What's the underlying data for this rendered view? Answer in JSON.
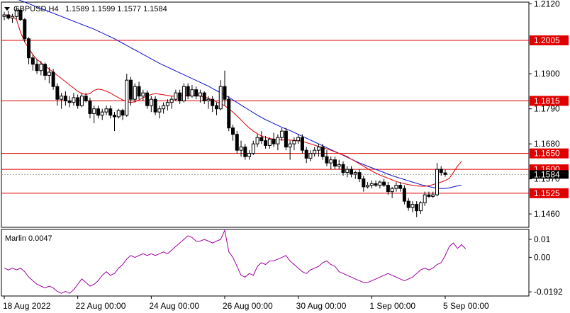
{
  "header": {
    "symbol": "GBPUSD,H4",
    "ohlc": "1.1589 1.1599 1.1577 1.1584"
  },
  "colors": {
    "candle_up": "#ffffff",
    "candle_down": "#000000",
    "ma_fast": "#e00000",
    "ma_slow": "#1010d0",
    "level_line": "#e00000",
    "level_label_bg": "#e00000",
    "level_label_text": "#ffffff",
    "oscillator": "#a000a0",
    "grid": "#c8c8c8"
  },
  "chart_data": [
    {
      "type": "candlestick",
      "title": "GBPUSD,H4",
      "y_ticks": [
        1.212,
        1.19,
        1.179,
        1.168,
        1.157,
        1.146
      ],
      "ylim": [
        1.1418,
        1.2125
      ],
      "x_ticks": [
        "18 Aug 2022",
        "22 Aug 00:00",
        "24 Aug 00:00",
        "26 Aug 00:00",
        "30 Aug 00:00",
        "1 Sep 00:00",
        "5 Sep 00:00"
      ],
      "x_tick_index": [
        0,
        18,
        36,
        54,
        72,
        90,
        108
      ],
      "current_price_label": "1.1584",
      "levels": [
        {
          "value": 1.2005,
          "label": "1.2005"
        },
        {
          "value": 1.1815,
          "label": "1.1815"
        },
        {
          "value": 1.165,
          "label": "1.1650"
        },
        {
          "value": 1.16,
          "label": "1.1600"
        },
        {
          "value": 1.1525,
          "label": "1.1525"
        }
      ],
      "candles": [
        [
          1.208,
          1.2095,
          1.2068,
          1.2085
        ],
        [
          1.2085,
          1.2098,
          1.207,
          1.2075
        ],
        [
          1.2075,
          1.2088,
          1.206,
          1.208
        ],
        [
          1.208,
          1.211,
          1.2072,
          1.21
        ],
        [
          1.21,
          1.2108,
          1.2065,
          1.207
        ],
        [
          1.207,
          1.2075,
          1.2,
          1.201
        ],
        [
          1.201,
          1.2015,
          1.193,
          1.195
        ],
        [
          1.195,
          1.196,
          1.191,
          1.193
        ],
        [
          1.193,
          1.1945,
          1.19,
          1.191
        ],
        [
          1.191,
          1.194,
          1.1895,
          1.193
        ],
        [
          1.193,
          1.1935,
          1.188,
          1.1895
        ],
        [
          1.1895,
          1.192,
          1.187,
          1.1905
        ],
        [
          1.1905,
          1.1915,
          1.185,
          1.186
        ],
        [
          1.186,
          1.187,
          1.18,
          1.182
        ],
        [
          1.182,
          1.184,
          1.179,
          1.183
        ],
        [
          1.183,
          1.1845,
          1.18,
          1.1815
        ],
        [
          1.1815,
          1.183,
          1.1795,
          1.181
        ],
        [
          1.181,
          1.184,
          1.18,
          1.1825
        ],
        [
          1.1825,
          1.1835,
          1.179,
          1.18
        ],
        [
          1.18,
          1.184,
          1.1795,
          1.183
        ],
        [
          1.183,
          1.184,
          1.181,
          1.1815
        ],
        [
          1.1815,
          1.1825,
          1.176,
          1.1775
        ],
        [
          1.1775,
          1.18,
          1.1745,
          1.179
        ],
        [
          1.179,
          1.18,
          1.176,
          1.177
        ],
        [
          1.177,
          1.179,
          1.1755,
          1.178
        ],
        [
          1.178,
          1.18,
          1.177,
          1.179
        ],
        [
          1.179,
          1.18,
          1.176,
          1.177
        ],
        [
          1.177,
          1.178,
          1.172,
          1.1765
        ],
        [
          1.1765,
          1.179,
          1.176,
          1.1785
        ],
        [
          1.1785,
          1.179,
          1.1755,
          1.177
        ],
        [
          1.177,
          1.19,
          1.1765,
          1.188
        ],
        [
          1.188,
          1.189,
          1.18,
          1.182
        ],
        [
          1.182,
          1.187,
          1.181,
          1.186
        ],
        [
          1.186,
          1.1875,
          1.182,
          1.183
        ],
        [
          1.183,
          1.185,
          1.1815,
          1.184
        ],
        [
          1.184,
          1.1848,
          1.179,
          1.18
        ],
        [
          1.18,
          1.183,
          1.178,
          1.182
        ],
        [
          1.182,
          1.183,
          1.177,
          1.178
        ],
        [
          1.178,
          1.18,
          1.176,
          1.179
        ],
        [
          1.179,
          1.181,
          1.1775,
          1.18
        ],
        [
          1.18,
          1.182,
          1.1785,
          1.181
        ],
        [
          1.181,
          1.183,
          1.179,
          1.182
        ],
        [
          1.182,
          1.185,
          1.1815,
          1.184
        ],
        [
          1.184,
          1.185,
          1.1805,
          1.1815
        ],
        [
          1.1815,
          1.187,
          1.181,
          1.186
        ],
        [
          1.186,
          1.187,
          1.182,
          1.183
        ],
        [
          1.183,
          1.1865,
          1.1825,
          1.185
        ],
        [
          1.185,
          1.186,
          1.182,
          1.183
        ],
        [
          1.183,
          1.185,
          1.181,
          1.184
        ],
        [
          1.184,
          1.1845,
          1.1805,
          1.1815
        ],
        [
          1.1815,
          1.183,
          1.179,
          1.182
        ],
        [
          1.182,
          1.183,
          1.178,
          1.18
        ],
        [
          1.18,
          1.181,
          1.177,
          1.179
        ],
        [
          1.179,
          1.188,
          1.1785,
          1.186
        ],
        [
          1.186,
          1.191,
          1.18,
          1.182
        ],
        [
          1.182,
          1.183,
          1.172,
          1.173
        ],
        [
          1.173,
          1.174,
          1.169,
          1.171
        ],
        [
          1.171,
          1.172,
          1.165,
          1.166
        ],
        [
          1.166,
          1.169,
          1.164,
          1.167
        ],
        [
          1.167,
          1.168,
          1.163,
          1.164
        ],
        [
          1.164,
          1.166,
          1.163,
          1.165
        ],
        [
          1.165,
          1.169,
          1.1645,
          1.168
        ],
        [
          1.168,
          1.171,
          1.167,
          1.17
        ],
        [
          1.17,
          1.172,
          1.168,
          1.169
        ],
        [
          1.169,
          1.1705,
          1.1665,
          1.1675
        ],
        [
          1.1675,
          1.17,
          1.1665,
          1.1695
        ],
        [
          1.1695,
          1.1715,
          1.167,
          1.168
        ],
        [
          1.168,
          1.171,
          1.166,
          1.17
        ],
        [
          1.17,
          1.173,
          1.169,
          1.172
        ],
        [
          1.172,
          1.173,
          1.166,
          1.167
        ],
        [
          1.167,
          1.169,
          1.163,
          1.168
        ],
        [
          1.168,
          1.17,
          1.166,
          1.169
        ],
        [
          1.169,
          1.171,
          1.168,
          1.17
        ],
        [
          1.17,
          1.171,
          1.165,
          1.166
        ],
        [
          1.166,
          1.167,
          1.162,
          1.1635
        ],
        [
          1.1635,
          1.166,
          1.1625,
          1.165
        ],
        [
          1.165,
          1.167,
          1.164,
          1.166
        ],
        [
          1.166,
          1.168,
          1.164,
          1.167
        ],
        [
          1.167,
          1.168,
          1.163,
          1.164
        ],
        [
          1.164,
          1.166,
          1.161,
          1.162
        ],
        [
          1.162,
          1.164,
          1.16,
          1.163
        ],
        [
          1.163,
          1.164,
          1.16,
          1.161
        ],
        [
          1.161,
          1.163,
          1.16,
          1.1615
        ],
        [
          1.1615,
          1.1625,
          1.158,
          1.159
        ],
        [
          1.159,
          1.161,
          1.1575,
          1.16
        ],
        [
          1.16,
          1.161,
          1.1575,
          1.1585
        ],
        [
          1.1585,
          1.1595,
          1.157,
          1.159
        ],
        [
          1.159,
          1.16,
          1.156,
          1.157
        ],
        [
          1.157,
          1.158,
          1.153,
          1.1545
        ],
        [
          1.1545,
          1.156,
          1.154,
          1.155
        ],
        [
          1.155,
          1.1565,
          1.154,
          1.1555
        ],
        [
          1.1555,
          1.1565,
          1.1545,
          1.155
        ],
        [
          1.155,
          1.1565,
          1.154,
          1.156
        ],
        [
          1.156,
          1.157,
          1.1545,
          1.155
        ],
        [
          1.155,
          1.156,
          1.152,
          1.153
        ],
        [
          1.153,
          1.1545,
          1.151,
          1.154
        ],
        [
          1.154,
          1.156,
          1.153,
          1.155
        ],
        [
          1.155,
          1.156,
          1.153,
          1.154
        ],
        [
          1.154,
          1.155,
          1.149,
          1.15
        ],
        [
          1.15,
          1.151,
          1.147,
          1.148
        ],
        [
          1.148,
          1.15,
          1.1465,
          1.149
        ],
        [
          1.149,
          1.15,
          1.145,
          1.147
        ],
        [
          1.147,
          1.15,
          1.146,
          1.1495
        ],
        [
          1.1495,
          1.153,
          1.1485,
          1.152
        ],
        [
          1.152,
          1.153,
          1.151,
          1.1515
        ],
        [
          1.1515,
          1.153,
          1.151,
          1.152
        ],
        [
          1.152,
          1.162,
          1.1515,
          1.16
        ],
        [
          1.16,
          1.161,
          1.158,
          1.159
        ],
        [
          1.1589,
          1.1599,
          1.1577,
          1.1584
        ]
      ],
      "ma_fast": [
        1.2085,
        1.2083,
        1.208,
        1.207,
        1.203,
        1.2,
        1.198,
        1.196,
        1.1945,
        1.1935,
        1.1925,
        1.1915,
        1.1905,
        1.1895,
        1.1885,
        1.1875,
        1.1865,
        1.1855,
        1.1845,
        1.1838,
        1.1835,
        1.1838,
        1.1848,
        1.1852,
        1.185,
        1.1845,
        1.184,
        1.1832,
        1.1825,
        1.1818,
        1.1812,
        1.181,
        1.1812,
        1.1818,
        1.1825,
        1.183,
        1.1835,
        1.1838,
        1.1836,
        1.1834,
        1.1832,
        1.183,
        1.183,
        1.1831,
        1.1832,
        1.1833,
        1.1833,
        1.1832,
        1.183,
        1.1827,
        1.1823,
        1.1818,
        1.1812,
        1.1806,
        1.18,
        1.179,
        1.178,
        1.1768,
        1.1755,
        1.1742,
        1.173,
        1.172,
        1.1712,
        1.1705,
        1.17,
        1.1697,
        1.1695,
        1.1693,
        1.1692,
        1.1692,
        1.1692,
        1.1691,
        1.169,
        1.1688,
        1.1684,
        1.168,
        1.1676,
        1.1672,
        1.1668,
        1.1664,
        1.166,
        1.1655,
        1.165,
        1.1645,
        1.164,
        1.1632,
        1.1625,
        1.1617,
        1.161,
        1.1602,
        1.1595,
        1.1588,
        1.1582,
        1.1577,
        1.1572,
        1.1567,
        1.1562,
        1.1558,
        1.1555,
        1.1552,
        1.155,
        1.1548,
        1.1547,
        1.1547,
        1.1549,
        1.1552,
        1.1556,
        1.156,
        1.1565,
        1.1572,
        1.159,
        1.161,
        1.1625
      ],
      "ma_slow": [
        1.215,
        1.2145,
        1.214,
        1.2135,
        1.213,
        1.2125,
        1.212,
        1.2115,
        1.211,
        1.2105,
        1.21,
        1.2095,
        1.209,
        1.2085,
        1.208,
        1.2075,
        1.207,
        1.2065,
        1.206,
        1.2055,
        1.205,
        1.2045,
        1.204,
        1.2034,
        1.2028,
        1.2022,
        1.2016,
        1.201,
        1.2003,
        1.1996,
        1.1989,
        1.1982,
        1.1975,
        1.1968,
        1.1961,
        1.1954,
        1.1947,
        1.194,
        1.1933,
        1.1927,
        1.1921,
        1.1915,
        1.1909,
        1.1903,
        1.1897,
        1.1891,
        1.1885,
        1.1879,
        1.1873,
        1.1867,
        1.1861,
        1.1854,
        1.1847,
        1.184,
        1.1833,
        1.1826,
        1.1818,
        1.181,
        1.1802,
        1.1794,
        1.1786,
        1.1778,
        1.177,
        1.1763,
        1.1756,
        1.175,
        1.1744,
        1.1738,
        1.1732,
        1.1727,
        1.1722,
        1.1716,
        1.171,
        1.1704,
        1.1698,
        1.1692,
        1.1686,
        1.168,
        1.1674,
        1.1668,
        1.1662,
        1.1656,
        1.165,
        1.1644,
        1.1638,
        1.1632,
        1.1626,
        1.162,
        1.1615,
        1.161,
        1.1605,
        1.16,
        1.1595,
        1.159,
        1.1585,
        1.158,
        1.1576,
        1.1572,
        1.1568,
        1.1564,
        1.156,
        1.1556,
        1.1552,
        1.1549,
        1.1546,
        1.1543,
        1.1541,
        1.154,
        1.154,
        1.1542,
        1.1545,
        1.1548,
        1.155
      ]
    },
    {
      "type": "line",
      "title": "Marlin 0.0047",
      "y_ticks": [
        0.01,
        0.0,
        -0.0192
      ],
      "y_tick_labels": [
        "0.01",
        "0.00",
        "-0.0192"
      ],
      "ylim": [
        -0.0215,
        0.0155
      ],
      "series": [
        {
          "name": "Marlin",
          "values": [
            -0.006,
            -0.007,
            -0.006,
            -0.007,
            -0.006,
            -0.008,
            -0.011,
            -0.013,
            -0.015,
            -0.016,
            -0.017,
            -0.016,
            -0.017,
            -0.019,
            -0.02,
            -0.019,
            -0.02,
            -0.018,
            -0.015,
            -0.012,
            -0.014,
            -0.016,
            -0.015,
            -0.013,
            -0.01,
            -0.008,
            -0.01,
            -0.009,
            -0.006,
            -0.004,
            -0.001,
            0.001,
            0.0,
            0.001,
            0.002,
            0.001,
            0.002,
            0.001,
            0.002,
            0.003,
            0.002,
            0.004,
            0.006,
            0.008,
            0.01,
            0.012,
            0.011,
            0.009,
            0.009,
            0.01,
            0.009,
            0.008,
            0.009,
            0.01,
            0.015,
            0.003,
            0.0,
            -0.005,
            -0.01,
            -0.011,
            -0.009,
            -0.01,
            -0.005,
            -0.003,
            -0.004,
            -0.002,
            -0.002,
            -0.001,
            0.0,
            0.001,
            -0.002,
            -0.004,
            -0.006,
            -0.008,
            -0.009,
            -0.007,
            -0.006,
            -0.005,
            -0.003,
            -0.002,
            -0.004,
            -0.005,
            -0.008,
            -0.009,
            -0.01,
            -0.011,
            -0.012,
            -0.013,
            -0.014,
            -0.014,
            -0.013,
            -0.012,
            -0.011,
            -0.01,
            -0.009,
            -0.01,
            -0.011,
            -0.012,
            -0.013,
            -0.012,
            -0.011,
            -0.009,
            -0.007,
            -0.006,
            -0.007,
            -0.006,
            -0.004,
            -0.003,
            0.001,
            0.006,
            0.008,
            0.005,
            0.007,
            0.0047
          ]
        }
      ]
    }
  ]
}
